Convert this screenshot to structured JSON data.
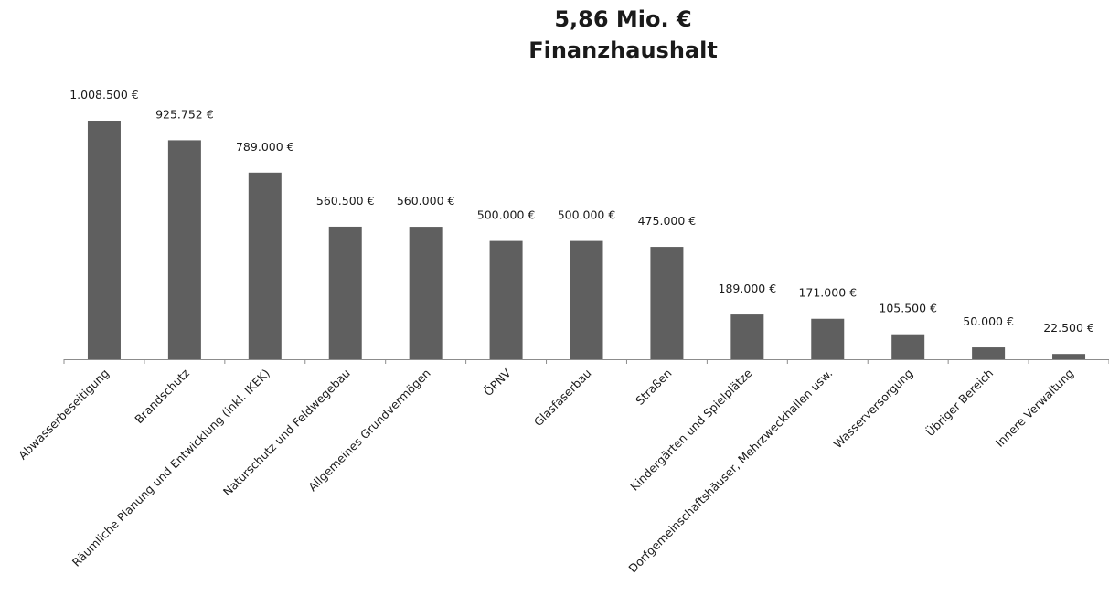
{
  "chart_data": {
    "type": "bar",
    "title": "5,86 Mio. €",
    "subtitle": "Finanzhaushalt",
    "currency": "€",
    "categories": [
      "Abwasserbeseitigung",
      "Brandschutz",
      "Räumliche Planung und Entwicklung (inkl. IKEK)",
      "Naturschutz und Feldwegebau",
      "Allgemeines Grundvermögen",
      "ÖPNV",
      "Glasfaserbau",
      "Straßen",
      "Kindergärten und Spielplätze",
      "Dorfgemeinschaftshäuser, Mehrzweckhallen usw.",
      "Wasserversorgung",
      "Übriger Bereich",
      "Innere Verwaltung"
    ],
    "values": [
      1008500,
      925752,
      789000,
      560500,
      560000,
      500000,
      500000,
      475000,
      189000,
      171000,
      105500,
      50000,
      22500
    ],
    "value_labels": [
      "1.008.500 €",
      "925.752 €",
      "789.000 €",
      "560.500 €",
      "560.000 €",
      "500.000 €",
      "500.000 €",
      "475.000 €",
      "189.000 €",
      "171.000 €",
      "105.500 €",
      "50.000 €",
      "22.500 €"
    ],
    "ylim": [
      0,
      1008500
    ],
    "grid": false,
    "legend": "none",
    "bar_color": "#5f5f5f"
  }
}
